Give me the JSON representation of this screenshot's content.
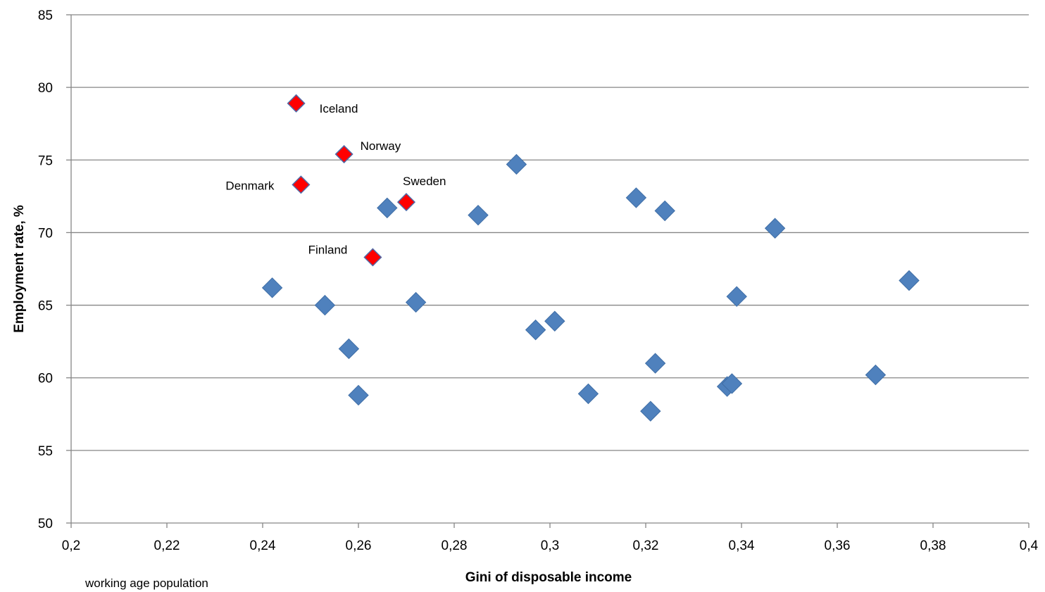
{
  "chart_data": {
    "type": "scatter",
    "title": "",
    "xlabel": "Gini of disposable income",
    "ylabel": "Employment rate, %",
    "note": "working age  population",
    "xlim": [
      0.2,
      0.4
    ],
    "ylim": [
      50,
      85
    ],
    "x_ticks": [
      0.2,
      0.22,
      0.24,
      0.26,
      0.28,
      0.3,
      0.32,
      0.34,
      0.36,
      0.38,
      0.4
    ],
    "x_tick_labels": [
      "0,2",
      "0,22",
      "0,24",
      "0,26",
      "0,28",
      "0,3",
      "0,32",
      "0,34",
      "0,36",
      "0,38",
      "0,4"
    ],
    "y_ticks": [
      50,
      55,
      60,
      65,
      70,
      75,
      80,
      85
    ],
    "y_tick_labels": [
      "50",
      "55",
      "60",
      "65",
      "70",
      "75",
      "80",
      "85"
    ],
    "grid": "horizontal",
    "legend": "none",
    "colors": {
      "highlight": "#ff0000",
      "highlight_edge": "#4f6aa8",
      "others": "#4f81bd",
      "grid": "#868686"
    },
    "marker": "diamond",
    "series": [
      {
        "highlight": true,
        "points": [
          {
            "x": 0.247,
            "y": 78.9,
            "label": "Iceland"
          },
          {
            "x": 0.257,
            "y": 75.4,
            "label": "Norway"
          },
          {
            "x": 0.248,
            "y": 73.3,
            "label": "Denmark"
          },
          {
            "x": 0.27,
            "y": 72.1,
            "label": "Sweden"
          },
          {
            "x": 0.263,
            "y": 68.3,
            "label": "Finland"
          }
        ]
      },
      {
        "highlight": false,
        "points": [
          {
            "x": 0.242,
            "y": 66.2
          },
          {
            "x": 0.253,
            "y": 65.0
          },
          {
            "x": 0.258,
            "y": 62.0
          },
          {
            "x": 0.26,
            "y": 58.8
          },
          {
            "x": 0.266,
            "y": 71.7
          },
          {
            "x": 0.272,
            "y": 65.2
          },
          {
            "x": 0.285,
            "y": 71.2
          },
          {
            "x": 0.293,
            "y": 74.7
          },
          {
            "x": 0.297,
            "y": 63.3
          },
          {
            "x": 0.301,
            "y": 63.9
          },
          {
            "x": 0.308,
            "y": 58.9
          },
          {
            "x": 0.318,
            "y": 72.4
          },
          {
            "x": 0.321,
            "y": 57.7
          },
          {
            "x": 0.322,
            "y": 61.0
          },
          {
            "x": 0.324,
            "y": 71.5
          },
          {
            "x": 0.337,
            "y": 59.4
          },
          {
            "x": 0.338,
            "y": 59.6
          },
          {
            "x": 0.339,
            "y": 65.6
          },
          {
            "x": 0.347,
            "y": 70.3
          },
          {
            "x": 0.368,
            "y": 60.2
          },
          {
            "x": 0.375,
            "y": 66.7
          }
        ]
      }
    ]
  }
}
